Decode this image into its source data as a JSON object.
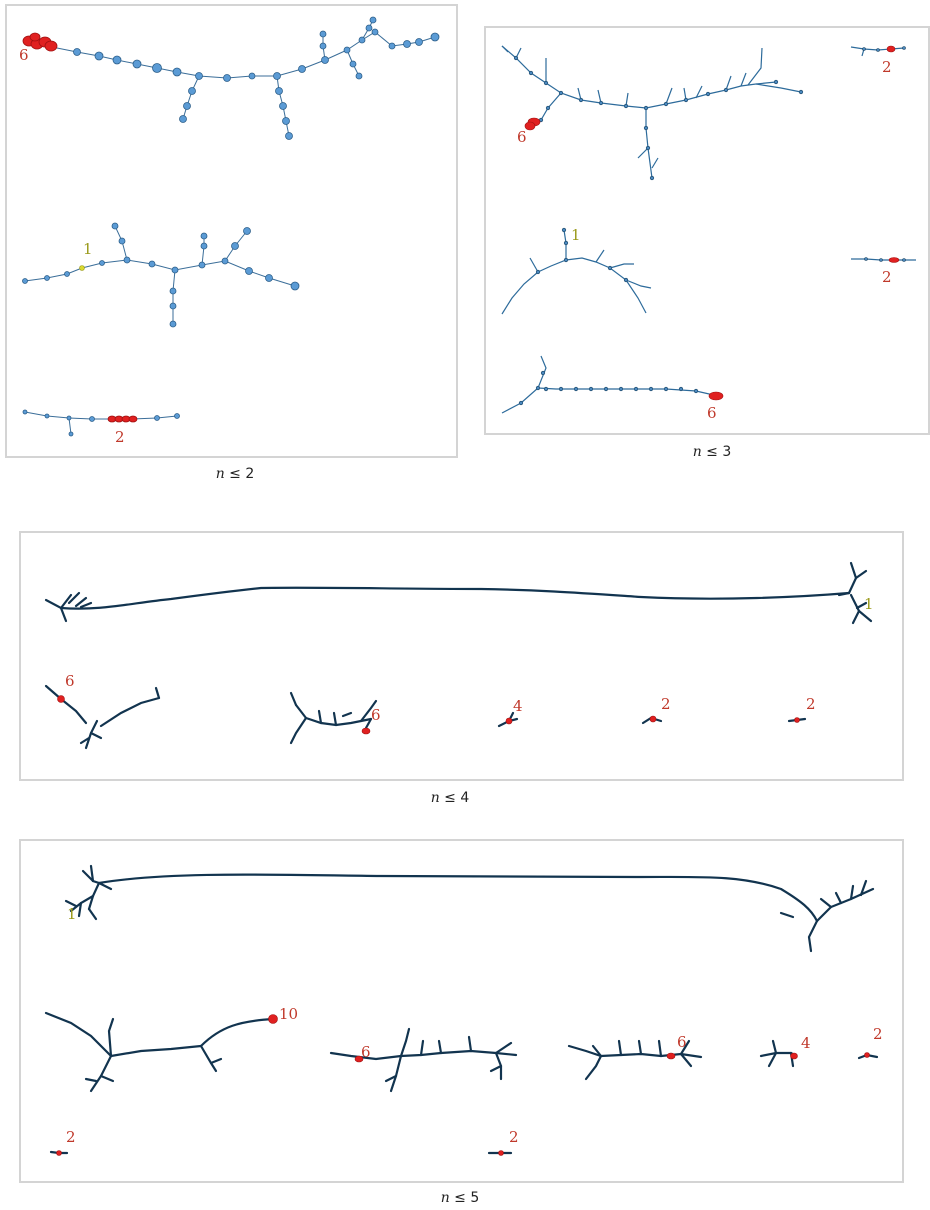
{
  "colors": {
    "frame": "#d4d4d4",
    "node_light": "#5b9bd5",
    "node_mid": "#2d6b9b",
    "node_dark": "#12344f",
    "highlight": "#dd2020",
    "label_red": "#c0392b",
    "label_olive": "#9a9a1a"
  },
  "panels": [
    {
      "key": "p2",
      "caption_var": "n",
      "caption_rest": " ≤ 2",
      "labels": [
        "6",
        "1",
        "2"
      ]
    },
    {
      "key": "p3",
      "caption_var": "n",
      "caption_rest": " ≤ 3",
      "labels": [
        "6",
        "2",
        "1",
        "2",
        "6"
      ]
    },
    {
      "key": "p4",
      "caption_var": "n",
      "caption_rest": " ≤ 4",
      "labels": [
        "1",
        "6",
        "6",
        "4",
        "2",
        "2"
      ]
    },
    {
      "key": "p5",
      "caption_var": "n",
      "caption_rest": " ≤ 5",
      "labels": [
        "1",
        "10",
        "6",
        "6",
        "4",
        "2",
        "2",
        "2"
      ]
    }
  ]
}
